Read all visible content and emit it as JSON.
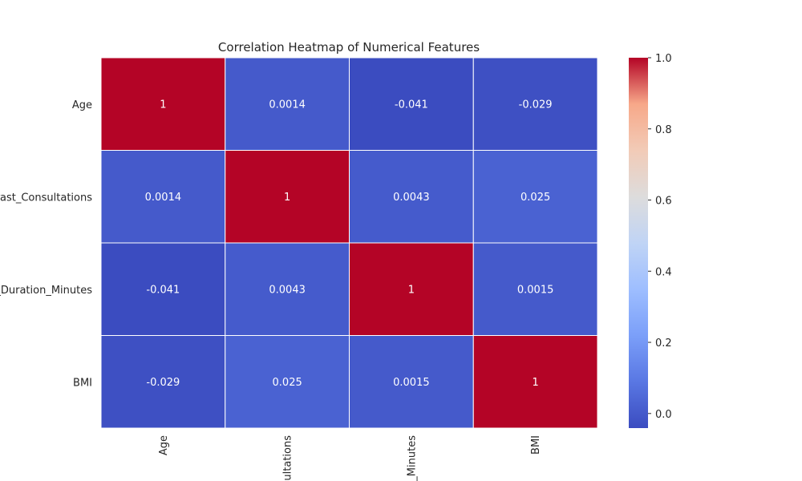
{
  "chart_data": {
    "type": "heatmap",
    "title": "Correlation Heatmap of Numerical Features",
    "x_labels": [
      "Age",
      "Past_Consultations",
      "Session_Duration_Minutes",
      "BMI"
    ],
    "x_labels_visible": [
      "Age",
      "ultations",
      "_Minutes",
      "BMI"
    ],
    "y_labels": [
      "Age",
      "Past_Consultations",
      "Session_Duration_Minutes",
      "BMI"
    ],
    "y_labels_visible": [
      "Age",
      "Past_Consultations",
      "_Duration_Minutes",
      "BMI"
    ],
    "values": [
      [
        1,
        0.0014,
        -0.041,
        -0.029
      ],
      [
        0.0014,
        1,
        0.0043,
        0.025
      ],
      [
        -0.041,
        0.0043,
        1,
        0.0015
      ],
      [
        -0.029,
        0.025,
        0.0015,
        1
      ]
    ],
    "annotations": [
      [
        "1",
        "0.0014",
        "-0.041",
        "-0.029"
      ],
      [
        "0.0014",
        "1",
        "0.0043",
        "0.025"
      ],
      [
        "-0.041",
        "0.0043",
        "1",
        "0.0015"
      ],
      [
        "-0.029",
        "0.025",
        "0.0015",
        "1"
      ]
    ],
    "colormap": "coolwarm",
    "color_range": [
      -0.041,
      1.0
    ],
    "colorbar_ticks": [
      1.0,
      0.8,
      0.6,
      0.4,
      0.2,
      0.0
    ],
    "colorbar_tick_labels": [
      "1.0",
      "0.8",
      "0.6",
      "0.4",
      "0.2",
      "0.0"
    ],
    "colorbar_position": "right",
    "grid": false
  }
}
